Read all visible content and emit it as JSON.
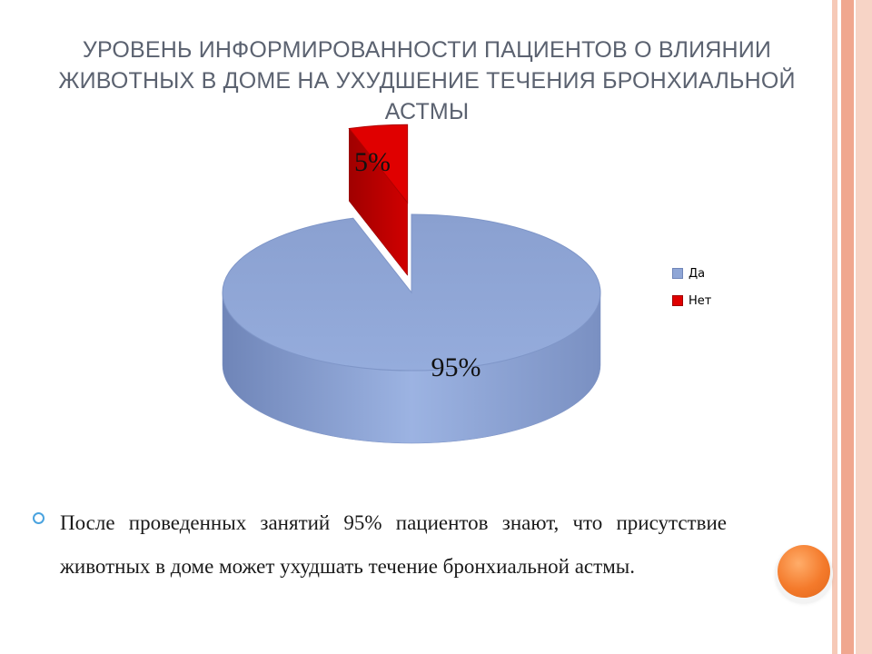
{
  "title": "УРОВЕНЬ ИНФОРМИРОВАННОСТИ ПАЦИЕНТОВ О ВЛИЯНИИ ЖИВОТНЫХ В ДОМЕ НА УХУДШЕНИЕ ТЕЧЕНИЯ БРОНХИАЛЬНОЙ АСТМЫ",
  "chart_data": {
    "type": "pie",
    "categories": [
      "Да",
      "Нет"
    ],
    "values": [
      95,
      5
    ],
    "data_labels": [
      "95%",
      "5%"
    ],
    "colors": [
      "#8fa6d6",
      "#e00000"
    ],
    "three_d": true,
    "exploded_slice": "Нет",
    "legend": "right"
  },
  "bullet": {
    "text": "После проведенных занятий 95% пациентов знают, что присутствие животных в доме может ухудшать течение бронхиальной астмы."
  },
  "decor": {
    "stripe_colors": [
      "#f6c9b7",
      "#f0a78f",
      "#f7d4c6"
    ],
    "circle_color": "#f47a2b",
    "bullet_icon_color": "#4aa3df"
  }
}
